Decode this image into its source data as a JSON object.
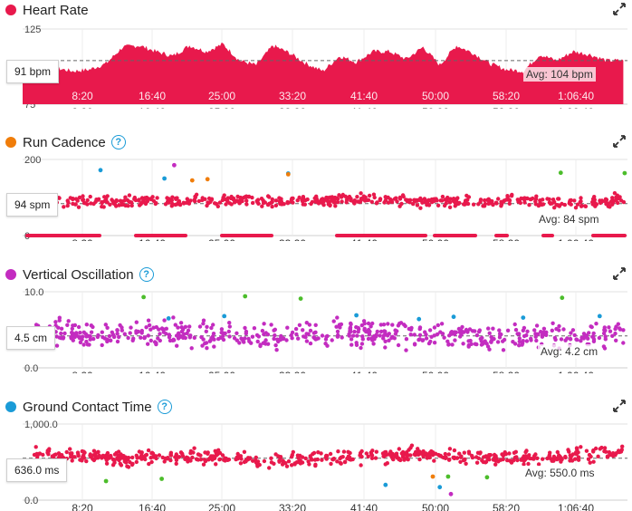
{
  "x_ticks": [
    "8:20",
    "16:40",
    "25:00",
    "33:20",
    "41:40",
    "50:00",
    "58:20",
    "1:06:40"
  ],
  "colors": {
    "red": "#e8194c",
    "orange": "#f07d0a",
    "blue": "#1a9bd7",
    "green": "#4cbd2b",
    "purple": "#c32cc0"
  },
  "panels": {
    "hr": {
      "title": "Heart Rate",
      "dot_color": "#e8194c",
      "current": "91 bpm",
      "avg": "Avg: 104 bpm",
      "y_max": "125",
      "y_min": "75"
    },
    "cad": {
      "title": "Run Cadence",
      "dot_color": "#f07d0a",
      "current": "94 spm",
      "avg": "Avg: 84 spm",
      "y_max": "200",
      "y_min": "0"
    },
    "vo": {
      "title": "Vertical Oscillation",
      "dot_color": "#c32cc0",
      "current": "4.5 cm",
      "avg": "Avg: 4.2 cm",
      "y_max": "10.0",
      "y_min": "0.0"
    },
    "gct": {
      "title": "Ground Contact Time",
      "dot_color": "#1a9bd7",
      "current": "636.0 ms",
      "avg": "Avg: 550.0 ms",
      "y_max": "1,000.0",
      "y_min": "0.0"
    }
  },
  "chart_data": [
    {
      "type": "area",
      "title": "Heart Rate",
      "ylim": [
        75,
        125
      ],
      "avg": 104,
      "unit": "bpm",
      "x": [
        0,
        120,
        240,
        360,
        480,
        600,
        720,
        840,
        960,
        1080,
        1200,
        1320,
        1440,
        1560,
        1680,
        1800,
        1920,
        2040,
        2160,
        2280,
        2400,
        2520,
        2640,
        2760,
        2880,
        3000,
        3120,
        3240,
        3360,
        3480,
        3600,
        3720,
        3840,
        3960,
        4080,
        4200,
        4320
      ],
      "values": [
        91,
        100,
        99,
        97,
        98,
        102,
        113,
        114,
        110,
        107,
        114,
        110,
        115,
        104,
        101,
        114,
        109,
        102,
        97,
        107,
        103,
        110,
        110,
        105,
        113,
        101,
        114,
        109,
        102,
        98,
        97,
        108,
        104,
        110,
        108,
        104,
        104
      ]
    },
    {
      "type": "scatter",
      "title": "Run Cadence",
      "ylim": [
        0,
        200
      ],
      "avg": 84,
      "unit": "spm",
      "series": [
        {
          "color": "red",
          "x": [
            180,
            600,
            1100,
            1500,
            2000,
            2500,
            3000,
            3500,
            4000,
            4300
          ],
          "y": [
            94,
            88,
            92,
            95,
            90,
            96,
            88,
            92,
            86,
            94
          ]
        },
        {
          "color": "blue",
          "x": [
            560,
            1020,
            1910
          ],
          "y": [
            172,
            150,
            163
          ]
        },
        {
          "color": "orange",
          "x": [
            1220,
            1330,
            1910
          ],
          "y": [
            145,
            148,
            161
          ]
        },
        {
          "color": "green",
          "x": [
            3870,
            4330
          ],
          "y": [
            165,
            164
          ]
        },
        {
          "color": "purple",
          "x": [
            1090
          ],
          "y": [
            185
          ]
        }
      ]
    },
    {
      "type": "scatter",
      "title": "Vertical Oscillation",
      "ylim": [
        0,
        10
      ],
      "avg": 4.2,
      "unit": "cm",
      "series": [
        {
          "color": "purple",
          "x": [
            200,
            700,
            1200,
            1800,
            2300,
            2900,
            3400,
            4000
          ],
          "y": [
            4.5,
            4.3,
            4.6,
            4.1,
            4.8,
            4.2,
            3.9,
            4.4
          ]
        },
        {
          "color": "blue",
          "x": [
            1050,
            1450,
            2400,
            2850,
            3100,
            3600,
            4150
          ],
          "y": [
            6.5,
            6.8,
            6.9,
            6.4,
            6.7,
            6.6,
            6.8
          ]
        },
        {
          "color": "green",
          "x": [
            870,
            1600,
            2000,
            3880
          ],
          "y": [
            9.3,
            9.4,
            9.1,
            9.2
          ]
        }
      ]
    },
    {
      "type": "scatter",
      "title": "Ground Contact Time",
      "ylim": [
        0,
        1000
      ],
      "avg": 550,
      "unit": "ms",
      "series": [
        {
          "color": "red",
          "x": [
            200,
            700,
            1200,
            1800,
            2400,
            2900,
            3300,
            3900,
            4300
          ],
          "y": [
            600,
            550,
            580,
            520,
            560,
            610,
            540,
            570,
            630
          ]
        },
        {
          "color": "green",
          "x": [
            600,
            1000,
            3060,
            3340
          ],
          "y": [
            250,
            280,
            310,
            300
          ]
        },
        {
          "color": "orange",
          "x": [
            2950
          ],
          "y": [
            310
          ]
        },
        {
          "color": "blue",
          "x": [
            2610,
            3000
          ],
          "y": [
            200,
            170
          ]
        },
        {
          "color": "purple",
          "x": [
            3080
          ],
          "y": [
            80
          ]
        }
      ]
    }
  ]
}
